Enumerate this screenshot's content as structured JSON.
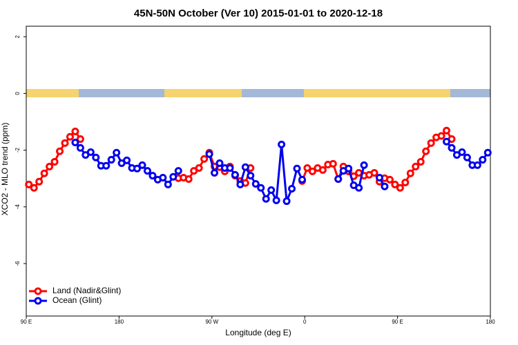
{
  "chart_data": {
    "type": "line",
    "title": "45N-50N October (Ver 10)   2015-01-01 to 2020-12-18",
    "x_label": "Longitude (deg E)",
    "y_label": "XCO2 - MLO trend (ppm)",
    "xlim": [
      90,
      540
    ],
    "ylim": [
      -7.85,
      2.37
    ],
    "xticks": [
      {
        "value": 90,
        "label": "90 E"
      },
      180,
      {
        "value": 270,
        "label": "90 W"
      },
      {
        "value": 360,
        "label": "0"
      },
      {
        "value": 450,
        "label": "90 E"
      },
      {
        "value": 540,
        "label": "180"
      }
    ],
    "yticks": [
      2,
      0,
      -2,
      -4,
      -6
    ],
    "legend": "bottom-left",
    "series": [
      {
        "name": "Land (Nadir&Glint)",
        "color": "#ff0000",
        "x": [
          92.5,
          97.5,
          102.5,
          107.5,
          112.5,
          117.5,
          122.5,
          127.5,
          132.5,
          137.5,
          142.5,
          147.5,
          237.5,
          242.5,
          247.5,
          252.5,
          257.5,
          262.5,
          267.5,
          272.5,
          277.5,
          282.5,
          287.5,
          292.5,
          297.5,
          302.5,
          307.5,
          312.5,
          357.5,
          362.5,
          367.5,
          372.5,
          377.5,
          382.5,
          387.5,
          392.5,
          397.5,
          402.5,
          407.5,
          412.5,
          417.5,
          422.5,
          427.5,
          432.5,
          437.5,
          442.5,
          447.5,
          452.5,
          457.5,
          462.5,
          467.5,
          472.5,
          477.5,
          482.5,
          487.5,
          492.5,
          497.5,
          502.5
        ],
        "values": [
          -3.21,
          -3.33,
          -3.11,
          -2.82,
          -2.58,
          -2.41,
          -2.04,
          -1.75,
          -1.53,
          -1.34,
          -1.61,
          null,
          -2.99,
          -2.97,
          -3.02,
          -2.73,
          -2.63,
          -2.31,
          -2.09,
          -2.58,
          -2.6,
          -2.75,
          -2.58,
          -2.9,
          -3.09,
          -3.16,
          -2.63,
          null,
          -3.09,
          -2.63,
          -2.75,
          -2.63,
          -2.7,
          -2.51,
          -2.48,
          -3.02,
          -2.58,
          -2.75,
          -2.92,
          -2.8,
          -2.9,
          -2.87,
          -2.8,
          -3.11,
          -2.99,
          -3.04,
          -3.21,
          -3.33,
          -3.14,
          -2.82,
          -2.58,
          -2.41,
          -2.04,
          -1.75,
          -1.55,
          -1.5,
          -1.31,
          -1.61
        ]
      },
      {
        "name": "Ocean (Glint)",
        "color": "#0000ee",
        "x": [
          137.5,
          142.5,
          147.5,
          152.5,
          157.5,
          162.5,
          167.5,
          172.5,
          177.5,
          182.5,
          187.5,
          192.5,
          197.5,
          202.5,
          207.5,
          212.5,
          217.5,
          222.5,
          227.5,
          232.5,
          237.5,
          242.5,
          267.5,
          272.5,
          277.5,
          282.5,
          287.5,
          292.5,
          297.5,
          302.5,
          307.5,
          312.5,
          317.5,
          322.5,
          327.5,
          332.5,
          337.5,
          342.5,
          347.5,
          352.5,
          357.5,
          362.5,
          392.5,
          397.5,
          402.5,
          407.5,
          412.5,
          417.5,
          422.5,
          432.5,
          437.5,
          442.5,
          497.5,
          502.5,
          507.5,
          512.5,
          517.5,
          522.5,
          527.5,
          532.5,
          537.5
        ],
        "values": [
          -1.73,
          -1.92,
          -2.17,
          -2.07,
          -2.26,
          -2.55,
          -2.55,
          -2.34,
          -2.09,
          -2.46,
          -2.36,
          -2.63,
          -2.65,
          -2.53,
          -2.73,
          -2.9,
          -3.04,
          -2.97,
          -3.21,
          -2.94,
          -2.73,
          null,
          -2.14,
          -2.8,
          -2.46,
          -2.63,
          -2.63,
          -2.87,
          -3.21,
          -2.6,
          -2.9,
          -3.19,
          -3.33,
          -3.72,
          -3.41,
          -3.77,
          -1.8,
          -3.8,
          -3.36,
          -2.65,
          -3.04,
          null,
          -3.02,
          -2.73,
          -2.65,
          -3.24,
          -3.33,
          -2.53,
          null,
          -2.97,
          -3.28,
          null,
          -1.7,
          -1.92,
          -2.17,
          -2.07,
          -2.26,
          -2.53,
          -2.53,
          -2.34,
          -2.09
        ]
      }
    ]
  }
}
